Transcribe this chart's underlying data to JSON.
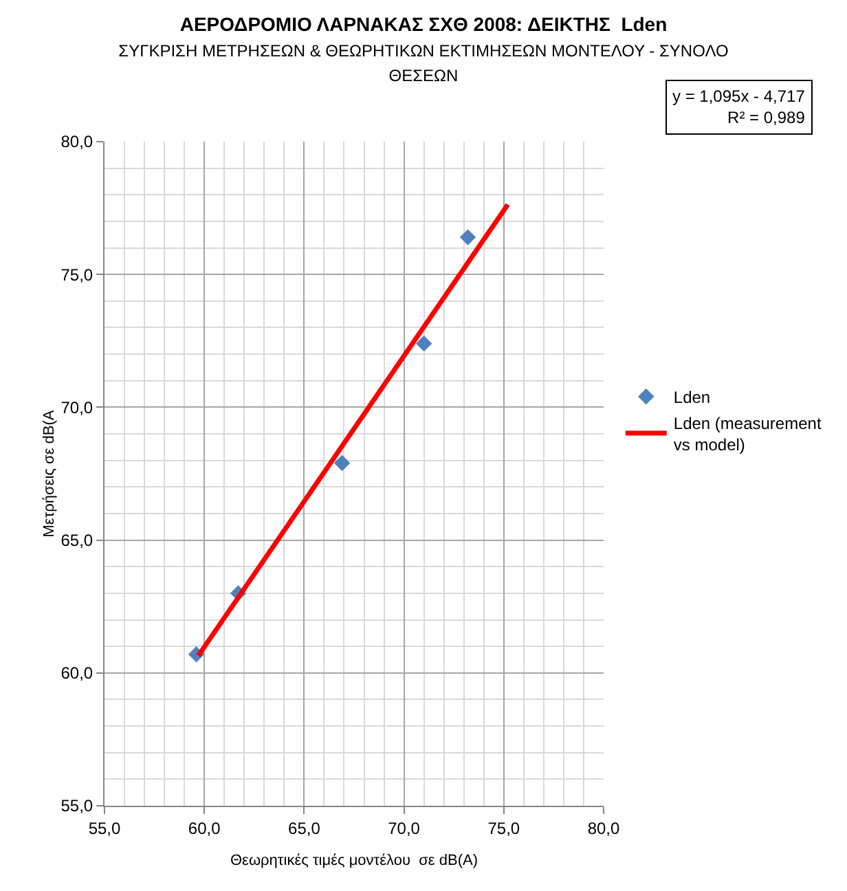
{
  "chart_data": {
    "type": "scatter",
    "title": "ΑΕΡΟΔΡΟΜΙΟ ΛΑΡΝΑΚΑΣ ΣΧΘ 2008: ΔΕΙΚΤΗΣ  Lden",
    "subtitle": "ΣΥΓΚΡΙΣΗ ΜΕΤΡΗΣΕΩΝ & ΘΕΩΡΗΤΙΚΩΝ ΕΚΤΙΜΗΣΕΩΝ ΜΟΝΤΕΛΟΥ - ΣΥΝΟΛΟ ΘΕΣΕΩΝ",
    "xlabel": "Θεωρητικές τιμές μοντέλου  σε dB(A)",
    "ylabel": "Μετρήσεις σε dB(A",
    "annotations": [
      "y = 1,095x - 4,717",
      "R² = 0,989"
    ],
    "xlim": [
      55,
      80
    ],
    "xticks": [
      {
        "value": 55,
        "label": "55,0"
      },
      {
        "value": 60,
        "label": "60,0"
      },
      {
        "value": 65,
        "label": "65,0"
      },
      {
        "value": 70,
        "label": "70,0"
      },
      {
        "value": 75,
        "label": "75,0"
      },
      {
        "value": 80,
        "label": "80,0"
      }
    ],
    "ylim": [
      55,
      80
    ],
    "yticks": [
      {
        "value": 55,
        "label": "55,0"
      },
      {
        "value": 60,
        "label": "60,0"
      },
      {
        "value": 65,
        "label": "65,0"
      },
      {
        "value": 70,
        "label": "70,0"
      },
      {
        "value": 75,
        "label": "75,0"
      },
      {
        "value": 80,
        "label": "80,0"
      }
    ],
    "grid": true,
    "legend": "right",
    "series": [
      {
        "name": "Lden",
        "marker": "diamond",
        "color": "#4f81bd",
        "x": [
          59.6,
          61.7,
          66.9,
          71.0,
          73.2
        ],
        "values": [
          60.7,
          63.0,
          67.9,
          72.4,
          76.4
        ]
      },
      {
        "name": "Lden (measurement vs model)",
        "type": "line",
        "marker": "none",
        "line_style": "solid",
        "color": "#ff0000",
        "x": [
          59.7,
          75.2
        ],
        "values": [
          60.65,
          77.63
        ]
      }
    ]
  }
}
